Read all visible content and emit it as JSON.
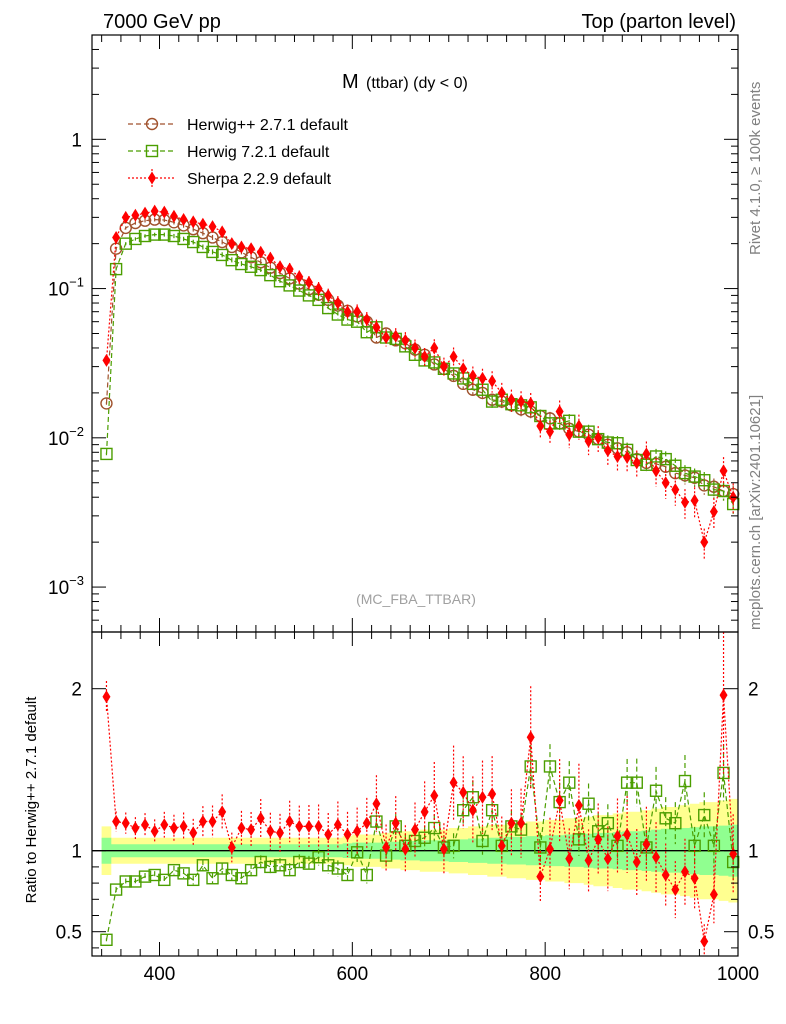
{
  "header": {
    "energy_label": "7000 GeV pp",
    "process_label": "Top (parton level)"
  },
  "side_labels": {
    "rivet": "Rivet 4.1.0, ≥ 100k events",
    "site": "mcplots.cern.ch [arXiv:2401.10621]"
  },
  "colors": {
    "herwigpp": "#a0522d",
    "herwig7": "#4b9e00",
    "sherpa": "#ff0000",
    "band_outer": "#ffff90",
    "band_inner": "#90ff90"
  },
  "chart_data": [
    {
      "type": "line",
      "title": "M (ttbar) (dy < 0)",
      "title_main": "M",
      "title_sub": "(ttbar) (dy < 0)",
      "watermark": "(MC_FBA_TTBAR)",
      "xlabel": "",
      "ylabel": "",
      "yscale": "log",
      "xlim": [
        330,
        1000
      ],
      "ylim": [
        0.0005,
        5
      ],
      "x_ticks": [
        400,
        600,
        800,
        1000
      ],
      "y_ticks": [
        {
          "value": 1,
          "label": "1"
        },
        {
          "value": 0.1,
          "label": "10",
          "exp": "−1"
        },
        {
          "value": 0.01,
          "label": "10",
          "exp": "−2"
        },
        {
          "value": 0.001,
          "label": "10",
          "exp": "−3"
        }
      ],
      "legend": [
        "Herwig++ 2.7.1 default",
        "Herwig 7.2.1 default",
        "Sherpa 2.2.9 default"
      ],
      "x": [
        345,
        355,
        365,
        375,
        385,
        395,
        405,
        415,
        425,
        435,
        445,
        455,
        465,
        475,
        485,
        495,
        505,
        515,
        525,
        535,
        545,
        555,
        565,
        575,
        585,
        595,
        605,
        615,
        625,
        635,
        645,
        655,
        665,
        675,
        685,
        695,
        705,
        715,
        725,
        735,
        745,
        755,
        765,
        775,
        785,
        795,
        805,
        815,
        825,
        835,
        845,
        855,
        865,
        875,
        885,
        895,
        905,
        915,
        925,
        935,
        945,
        955,
        965,
        975,
        985,
        995
      ],
      "series": [
        {
          "name": "Herwig++ 2.7.1 default",
          "values": [
            0.017,
            0.185,
            0.255,
            0.275,
            0.285,
            0.29,
            0.288,
            0.278,
            0.265,
            0.25,
            0.235,
            0.22,
            0.205,
            0.19,
            0.175,
            0.162,
            0.15,
            0.138,
            0.127,
            0.117,
            0.108,
            0.099,
            0.091,
            0.084,
            0.077,
            0.071,
            0.065,
            0.06,
            0.047,
            0.05,
            0.045,
            0.043,
            0.039,
            0.036,
            0.031,
            0.029,
            0.026,
            0.023,
            0.021,
            0.02,
            0.018,
            0.0175,
            0.0165,
            0.0155,
            0.015,
            0.014,
            0.0135,
            0.0125,
            0.0115,
            0.011,
            0.0105,
            0.0098,
            0.009,
            0.0085,
            0.008,
            0.0072,
            0.0068,
            0.0067,
            0.0064,
            0.0058,
            0.0056,
            0.0054,
            0.0048,
            0.0047,
            0.0044,
            0.0042
          ]
        },
        {
          "name": "Herwig 7.2.1 default",
          "values": [
            0.0078,
            0.135,
            0.2,
            0.215,
            0.225,
            0.23,
            0.23,
            0.225,
            0.215,
            0.205,
            0.19,
            0.176,
            0.168,
            0.155,
            0.146,
            0.14,
            0.133,
            0.123,
            0.112,
            0.105,
            0.097,
            0.09,
            0.084,
            0.074,
            0.067,
            0.062,
            0.06,
            0.051,
            0.055,
            0.047,
            0.046,
            0.041,
            0.036,
            0.033,
            0.032,
            0.029,
            0.027,
            0.025,
            0.023,
            0.021,
            0.0175,
            0.018,
            0.0168,
            0.0165,
            0.016,
            0.014,
            0.0125,
            0.0125,
            0.013,
            0.011,
            0.011,
            0.0098,
            0.0093,
            0.0092,
            0.0083,
            0.0071,
            0.0066,
            0.0075,
            0.0072,
            0.0065,
            0.0058,
            0.0055,
            0.0052,
            0.0045,
            0.0044,
            0.0036
          ]
        },
        {
          "name": "Sherpa 2.2.9 default",
          "values": [
            0.033,
            0.22,
            0.3,
            0.31,
            0.32,
            0.33,
            0.325,
            0.305,
            0.29,
            0.28,
            0.27,
            0.26,
            0.24,
            0.2,
            0.19,
            0.185,
            0.175,
            0.16,
            0.14,
            0.135,
            0.12,
            0.11,
            0.1,
            0.09,
            0.08,
            0.07,
            0.07,
            0.062,
            0.055,
            0.047,
            0.048,
            0.045,
            0.04,
            0.035,
            0.04,
            0.03,
            0.035,
            0.029,
            0.026,
            0.025,
            0.024,
            0.02,
            0.018,
            0.0175,
            0.017,
            0.012,
            0.011,
            0.015,
            0.0105,
            0.012,
            0.0095,
            0.01,
            0.0082,
            0.0075,
            0.0074,
            0.0068,
            0.0078,
            0.006,
            0.005,
            0.0045,
            0.0037,
            0.0038,
            0.002,
            0.0032,
            0.006,
            0.004
          ]
        }
      ]
    },
    {
      "type": "line",
      "title": "",
      "ylabel": "Ratio to Herwig++ 2.7.1 default",
      "xlabel": "",
      "xlim": [
        330,
        1000
      ],
      "ylim": [
        0.35,
        2.35
      ],
      "x_ticks": [
        400,
        600,
        800,
        1000
      ],
      "y_ticks": [
        0.5,
        1,
        2
      ],
      "reference_line": 1,
      "x": [
        345,
        355,
        365,
        375,
        385,
        395,
        405,
        415,
        425,
        435,
        445,
        455,
        465,
        475,
        485,
        495,
        505,
        515,
        525,
        535,
        545,
        555,
        565,
        575,
        585,
        595,
        605,
        615,
        625,
        635,
        645,
        655,
        665,
        675,
        685,
        695,
        705,
        715,
        725,
        735,
        745,
        755,
        765,
        775,
        785,
        795,
        805,
        815,
        825,
        835,
        845,
        855,
        865,
        875,
        885,
        895,
        905,
        915,
        925,
        935,
        945,
        955,
        965,
        975,
        985,
        995
      ],
      "band_outer": [
        0.15,
        0.08,
        0.08,
        0.08,
        0.08,
        0.08,
        0.08,
        0.08,
        0.08,
        0.08,
        0.08,
        0.08,
        0.08,
        0.08,
        0.08,
        0.08,
        0.08,
        0.08,
        0.08,
        0.08,
        0.08,
        0.08,
        0.08,
        0.08,
        0.08,
        0.09,
        0.1,
        0.1,
        0.1,
        0.11,
        0.11,
        0.12,
        0.12,
        0.13,
        0.13,
        0.13,
        0.14,
        0.14,
        0.15,
        0.15,
        0.16,
        0.16,
        0.17,
        0.17,
        0.18,
        0.18,
        0.19,
        0.19,
        0.2,
        0.2,
        0.21,
        0.22,
        0.22,
        0.23,
        0.24,
        0.24,
        0.25,
        0.26,
        0.27,
        0.27,
        0.28,
        0.29,
        0.3,
        0.3,
        0.31,
        0.32
      ],
      "band_inner": [
        0.08,
        0.04,
        0.04,
        0.04,
        0.04,
        0.04,
        0.04,
        0.04,
        0.04,
        0.04,
        0.04,
        0.04,
        0.04,
        0.04,
        0.04,
        0.04,
        0.04,
        0.04,
        0.04,
        0.04,
        0.04,
        0.04,
        0.04,
        0.04,
        0.04,
        0.045,
        0.05,
        0.05,
        0.05,
        0.055,
        0.055,
        0.06,
        0.06,
        0.065,
        0.065,
        0.065,
        0.07,
        0.07,
        0.075,
        0.075,
        0.08,
        0.08,
        0.085,
        0.085,
        0.09,
        0.09,
        0.095,
        0.095,
        0.1,
        0.1,
        0.105,
        0.11,
        0.11,
        0.115,
        0.12,
        0.12,
        0.125,
        0.13,
        0.135,
        0.135,
        0.14,
        0.145,
        0.15,
        0.15,
        0.155,
        0.16
      ],
      "series": [
        {
          "name": "Herwig 7.2.1 default",
          "values": [
            0.45,
            0.76,
            0.81,
            0.81,
            0.84,
            0.85,
            0.82,
            0.88,
            0.86,
            0.82,
            0.91,
            0.83,
            0.89,
            0.85,
            0.83,
            0.88,
            0.93,
            0.9,
            0.91,
            0.88,
            0.93,
            0.92,
            0.96,
            0.91,
            0.89,
            0.85,
            0.99,
            0.85,
            1.18,
            0.97,
            1.15,
            1.03,
            1.06,
            1.08,
            1.14,
            1.02,
            1.03,
            1.25,
            1.33,
            1.06,
            1.25,
            1.03,
            1.15,
            1.13,
            1.52,
            1.02,
            1.52,
            1.3,
            1.42,
            1.07,
            1.29,
            1.12,
            1.17,
            1.03,
            1.42,
            1.42,
            1.02,
            1.37,
            1.2,
            1.17,
            1.43,
            1.03,
            1.22,
            1.03,
            1.48,
            0.93
          ]
        },
        {
          "name": "Sherpa 2.2.9 default",
          "values": [
            1.95,
            1.18,
            1.17,
            1.14,
            1.16,
            1.12,
            1.16,
            1.14,
            1.15,
            1.11,
            1.18,
            1.18,
            1.24,
            1.02,
            1.14,
            1.13,
            1.2,
            1.12,
            1.11,
            1.18,
            1.15,
            1.15,
            1.15,
            1.1,
            1.16,
            1.1,
            1.12,
            1.17,
            1.29,
            1.02,
            1.17,
            1.01,
            1.13,
            1.24,
            1.34,
            1.01,
            1.42,
            1.36,
            1.25,
            1.33,
            1.35,
            1.03,
            1.17,
            1.17,
            1.7,
            0.84,
            1.01,
            1.31,
            0.95,
            1.28,
            0.94,
            1.07,
            0.95,
            1.09,
            1.1,
            0.93,
            1.04,
            0.96,
            0.85,
            0.76,
            0.87,
            0.83,
            0.44,
            0.73,
            1.96,
            0.98
          ]
        }
      ]
    }
  ]
}
